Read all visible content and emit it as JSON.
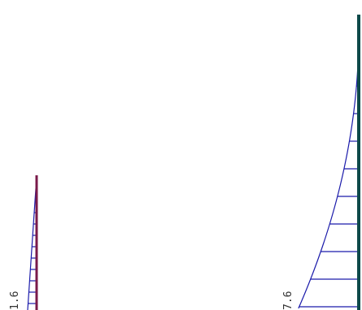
{
  "diagram": {
    "colors": {
      "hatch": "#1a1aaa",
      "left_member": "#7a1a4a",
      "right_member": "#0e4a4a",
      "label": "#333333",
      "background": "#ffffff"
    },
    "members": [
      {
        "id": "left",
        "value_label": "1.6"
      },
      {
        "id": "right",
        "value_label": "7.6"
      }
    ]
  }
}
